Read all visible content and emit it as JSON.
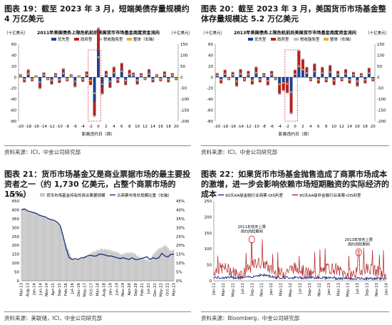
{
  "panels": [
    {
      "title": "图表 19：截至 2023 年 3 月，短端美债存量规模约 4 万亿美元",
      "source": "资料来源：ICI，中金公司研究部"
    },
    {
      "title": "图表 20：截至 2023 年 3 月，美国货币市场基金整体存量规模达 5.2 万亿美元",
      "source": "资料来源：ICI，中金公司研究部"
    },
    {
      "title": "图表 21：货币市场基金又是商业票据市场的最主要投资者之一（约 1,730 亿美元，占整个商票市场的 15%）",
      "source": "资料来源：美联储，ICI，中金公司研究部"
    },
    {
      "title": "图表 22：如果货币市场基金抛售造成了商票市场成本的激增，进一步会影响依赖市场短期融资的实际经济的成本",
      "source": "资料来源：Bloomberg，中金公司研究部"
    }
  ],
  "chart_data": [
    {
      "type": "bar",
      "title": "2011年美国债务上限危机前后美国货币市场基金周度资金流向",
      "left_unit": "（十亿美元）",
      "right_unit": "（十亿美元）",
      "xlabel": "距离违约日（周）",
      "x_ticks": [
        "-20",
        "-18",
        "-16",
        "-14",
        "-12",
        "-10",
        "-8",
        "-6",
        "-4",
        "-2",
        "0",
        "2",
        "4",
        "6",
        "8",
        "10",
        "12",
        "14",
        "16",
        "18",
        "20"
      ],
      "left_ticks": [
        "60",
        "40",
        "20",
        "0",
        "-20",
        "-40",
        "-60",
        "-80"
      ],
      "right_ticks": [
        "150",
        "100",
        "50",
        "0",
        "-50",
        "-100",
        "-150",
        "-200"
      ],
      "ylim": [
        -80,
        60
      ],
      "legend": [
        "优先型",
        "政府型",
        "税收豁免型",
        "整体（右轴）"
      ],
      "colors": {
        "prime": "#1f3f8f",
        "govt": "#b22222",
        "tax": "#bdbdbd",
        "total": "#e8a838"
      },
      "weeks": [
        -20,
        -19,
        -18,
        -17,
        -16,
        -15,
        -14,
        -13,
        -12,
        -11,
        -10,
        -9,
        -8,
        -7,
        -6,
        -5,
        -4,
        -3,
        -2,
        -1,
        0,
        1,
        2,
        3,
        4,
        5,
        6,
        7,
        8,
        9,
        10,
        11,
        12,
        13,
        14,
        15,
        16,
        17,
        18,
        19,
        20
      ],
      "series": [
        {
          "name": "优先型",
          "values": [
            3,
            -5,
            8,
            -4,
            2,
            -12,
            5,
            -3,
            -8,
            4,
            -6,
            9,
            -4,
            3,
            -10,
            2,
            -5,
            6,
            -8,
            -45,
            50,
            -20,
            6,
            -12,
            10,
            -6,
            15,
            -9,
            7,
            5,
            -8,
            4,
            -3,
            9,
            -6,
            3,
            -4,
            6,
            -5,
            4,
            -3
          ]
        },
        {
          "name": "政府型",
          "values": [
            2,
            -4,
            5,
            -3,
            1,
            -8,
            3,
            -2,
            -5,
            3,
            -4,
            6,
            -3,
            2,
            -7,
            1,
            -3,
            4,
            -6,
            -25,
            38,
            -10,
            5,
            -7,
            8,
            -4,
            10,
            -5,
            6,
            3,
            -5,
            3,
            -2,
            5,
            -3,
            2,
            -3,
            4,
            -4,
            3,
            -2
          ]
        },
        {
          "name": "税收豁免型",
          "values": [
            1,
            -1,
            2,
            -1,
            1,
            -2,
            1,
            -1,
            -1,
            1,
            -1,
            2,
            -1,
            1,
            -2,
            1,
            -1,
            1,
            -1,
            -3,
            3,
            -2,
            1,
            -1,
            2,
            -1,
            2,
            -1,
            1,
            1,
            -1,
            1,
            -1,
            1,
            -1,
            1,
            -1,
            1,
            -1,
            1,
            -1
          ]
        },
        {
          "name": "整体（右轴）",
          "values": [
            6,
            -10,
            15,
            -8,
            4,
            -22,
            9,
            -6,
            -14,
            8,
            -11,
            17,
            -8,
            6,
            -19,
            4,
            -9,
            11,
            -15,
            -73,
            91,
            -32,
            12,
            -20,
            20,
            -11,
            27,
            -15,
            14,
            9,
            -14,
            8,
            -6,
            15,
            -10,
            6,
            -8,
            11,
            -10,
            8,
            -6
          ]
        }
      ],
      "highlight": [
        "-2",
        "0"
      ]
    },
    {
      "type": "bar",
      "title": "2013年美国债务上限危机前后美国货币市场基金周度资金流向",
      "left_unit": "（十亿美元）",
      "right_unit": "（十亿美元）",
      "xlabel": "距离违约日（周）",
      "x_ticks": [
        "-20",
        "-18",
        "-16",
        "-14",
        "-12",
        "-10",
        "-8",
        "-6",
        "-4",
        "-2",
        "0",
        "2",
        "4",
        "6",
        "8",
        "10",
        "12",
        "14",
        "16",
        "18",
        "20"
      ],
      "left_ticks": [
        "60",
        "40",
        "20",
        "0",
        "-20",
        "-40",
        "-60",
        "-80"
      ],
      "right_ticks": [
        "150",
        "100",
        "50",
        "0",
        "-50",
        "-100",
        "-150",
        "-200"
      ],
      "ylim": [
        -80,
        60
      ],
      "legend": [
        "优先型",
        "政府型",
        "税收豁免型",
        "整体（右轴）"
      ],
      "colors": {
        "prime": "#1f3f8f",
        "govt": "#b22222",
        "tax": "#bdbdbd",
        "total": "#e8a838"
      },
      "weeks": [
        -20,
        -19,
        -18,
        -17,
        -16,
        -15,
        -14,
        -13,
        -12,
        -11,
        -10,
        -9,
        -8,
        -7,
        -6,
        -5,
        -4,
        -3,
        -2,
        -1,
        0,
        1,
        2,
        3,
        4,
        5,
        6,
        7,
        8,
        9,
        10,
        11,
        12,
        13,
        14,
        15,
        16,
        17,
        18,
        19,
        20
      ],
      "series": [
        {
          "name": "优先型",
          "values": [
            4,
            -6,
            7,
            -3,
            5,
            -9,
            8,
            -4,
            6,
            -7,
            10,
            -5,
            4,
            -8,
            6,
            -3,
            -12,
            -10,
            -8,
            -30,
            5,
            18,
            12,
            8,
            -4,
            14,
            -6,
            10,
            -5,
            12,
            -8,
            6,
            -4,
            8,
            -6,
            5,
            -9,
            4,
            -6,
            9,
            -4
          ]
        },
        {
          "name": "政府型",
          "values": [
            3,
            -5,
            6,
            -2,
            4,
            -7,
            6,
            -3,
            5,
            -6,
            8,
            -4,
            3,
            -6,
            5,
            -2,
            -18,
            -14,
            -20,
            -35,
            8,
            30,
            20,
            10,
            -3,
            10,
            -5,
            8,
            -4,
            9,
            -6,
            5,
            -3,
            6,
            -5,
            4,
            -7,
            3,
            -5,
            7,
            -3
          ]
        },
        {
          "name": "税收豁免型",
          "values": [
            1,
            -1,
            1,
            -1,
            1,
            -2,
            1,
            -1,
            1,
            -1,
            2,
            -1,
            1,
            -2,
            1,
            -1,
            -2,
            -2,
            -2,
            -3,
            1,
            2,
            2,
            1,
            -1,
            2,
            -1,
            1,
            -1,
            2,
            -1,
            1,
            -1,
            1,
            -1,
            1,
            -2,
            1,
            -1,
            2,
            -1
          ]
        },
        {
          "name": "整体（右轴）",
          "values": [
            8,
            -12,
            14,
            -6,
            10,
            -18,
            15,
            -8,
            12,
            -14,
            20,
            -10,
            8,
            -16,
            12,
            -6,
            -32,
            -26,
            -30,
            -68,
            14,
            50,
            34,
            19,
            -8,
            26,
            -12,
            19,
            -10,
            23,
            -15,
            12,
            -8,
            15,
            -12,
            10,
            -18,
            8,
            -12,
            18,
            -8
          ]
        }
      ],
      "highlight": [
        "-2",
        "0"
      ]
    },
    {
      "type": "area",
      "left_unit": "（十亿美元）",
      "legend": [
        "货币市场基金持有的商业票据规模",
        "占商票市场总规模比重（右轴）"
      ],
      "left_ticks": [
        "450",
        "400",
        "350",
        "300",
        "250",
        "200",
        "150",
        "100",
        "50",
        "0"
      ],
      "right_ticks": [
        "45%",
        "40%",
        "35%",
        "30%",
        "25%",
        "20%",
        "15%",
        "10%",
        "5%",
        "0%"
      ],
      "x_ticks": [
        "Mar-13",
        "Aug-13",
        "Jan-14",
        "Jun-14",
        "Nov-14",
        "Apr-15",
        "Sep-15",
        "Feb-16",
        "Jul-16",
        "Dec-16",
        "May-17",
        "Oct-17",
        "Mar-18",
        "Aug-18",
        "Jan-19",
        "Jun-19",
        "Nov-19",
        "Apr-20",
        "Sep-20",
        "Feb-21",
        "Jul-21",
        "Dec-21",
        "May-22",
        "Oct-22",
        "Mar-23"
      ],
      "ylim": [
        0,
        450
      ],
      "y2lim": [
        0,
        45
      ],
      "colors": {
        "area": "#c8c8c8",
        "line": "#1a2f80"
      },
      "series": [
        {
          "name": "货币市场基金持有的商业票据规模",
          "values": [
            405,
            410,
            395,
            390,
            385,
            380,
            370,
            365,
            355,
            350,
            345,
            335,
            325,
            300,
            250,
            200,
            160,
            125,
            118,
            120,
            128,
            135,
            140,
            150,
            162,
            170,
            175,
            180,
            178,
            175,
            170,
            165,
            160,
            152,
            150,
            155,
            160,
            158,
            150,
            140,
            130,
            125,
            120,
            110,
            150,
            165,
            180,
            190,
            200,
            185,
            170,
            175
          ]
        },
        {
          "name": "占商票市场总规模比重（右轴）",
          "values": [
            40,
            40.5,
            39.5,
            39,
            38.5,
            38,
            37,
            36.5,
            36,
            35,
            34.5,
            34,
            33,
            31,
            25,
            18,
            13,
            12,
            12.5,
            12,
            13,
            13,
            14,
            14.5,
            14,
            14,
            15,
            15,
            14.5,
            14,
            14,
            13.5,
            13,
            12.5,
            13,
            12.5,
            12,
            13,
            12,
            12,
            12.5,
            13,
            13.5,
            12,
            13,
            12.5,
            13,
            15.5,
            14,
            13.5,
            15,
            15
          ]
        }
      ]
    },
    {
      "type": "line",
      "legend": [
        "90天AA级金融行业商票-OIS利差",
        "90天AA级非金融行业商票-OIS利差"
      ],
      "left_ticks": [
        "250",
        "200",
        "150",
        "100",
        "50",
        "0"
      ],
      "ylim": [
        0,
        250
      ],
      "x_ticks": [
        "Jan-11",
        "Mar-11",
        "May-11",
        "Jul-11",
        "Sep-11",
        "Nov-11",
        "Jan-12",
        "Mar-12",
        "May-12",
        "Jul-12",
        "Sep-12",
        "Nov-12",
        "Jan-13",
        "Mar-13",
        "May-13",
        "Jul-13",
        "Sep-13",
        "Nov-13",
        "Jan-14"
      ],
      "colors": {
        "fin": "#1a2f80",
        "nonfin": "#b22222"
      },
      "annotations": [
        {
          "label": "2011年债务上限\n违约风险期间",
          "x": 0.22
        },
        {
          "label": "2013年债务上限\n违约风险期间",
          "x": 0.84
        }
      ]
    }
  ]
}
